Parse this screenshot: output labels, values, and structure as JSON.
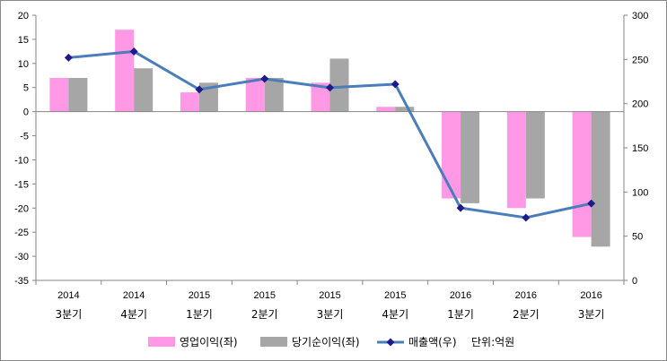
{
  "chart_data": {
    "type": "bar",
    "categories": [
      {
        "year": "2014",
        "quarter": "3분기"
      },
      {
        "year": "2014",
        "quarter": "4분기"
      },
      {
        "year": "2015",
        "quarter": "1분기"
      },
      {
        "year": "2015",
        "quarter": "2분기"
      },
      {
        "year": "2015",
        "quarter": "3분기"
      },
      {
        "year": "2015",
        "quarter": "4분기"
      },
      {
        "year": "2016",
        "quarter": "1분기"
      },
      {
        "year": "2016",
        "quarter": "2분기"
      },
      {
        "year": "2016",
        "quarter": "3분기"
      }
    ],
    "series": [
      {
        "name": "영업이익(좌)",
        "type": "bar",
        "axis": "left",
        "color": "#FF99E6",
        "values": [
          7,
          17,
          4,
          7,
          6,
          1,
          -18,
          -20,
          -26
        ]
      },
      {
        "name": "당기순이익(좌)",
        "type": "bar",
        "axis": "left",
        "color": "#A6A6A6",
        "values": [
          7,
          9,
          6,
          7,
          11,
          1,
          -19,
          -18,
          -28
        ]
      },
      {
        "name": "매출액(우)",
        "type": "line",
        "axis": "right",
        "color": "#4A7EBB",
        "marker_color": "#1F1A8C",
        "values": [
          252,
          259,
          216,
          228,
          218,
          222,
          82,
          71,
          87
        ]
      }
    ],
    "left_axis": {
      "min": -35,
      "max": 20,
      "step": 5
    },
    "right_axis": {
      "min": 0,
      "max": 300,
      "step": 50
    },
    "legend_position": "bottom",
    "unit_note": "단위:억원"
  }
}
